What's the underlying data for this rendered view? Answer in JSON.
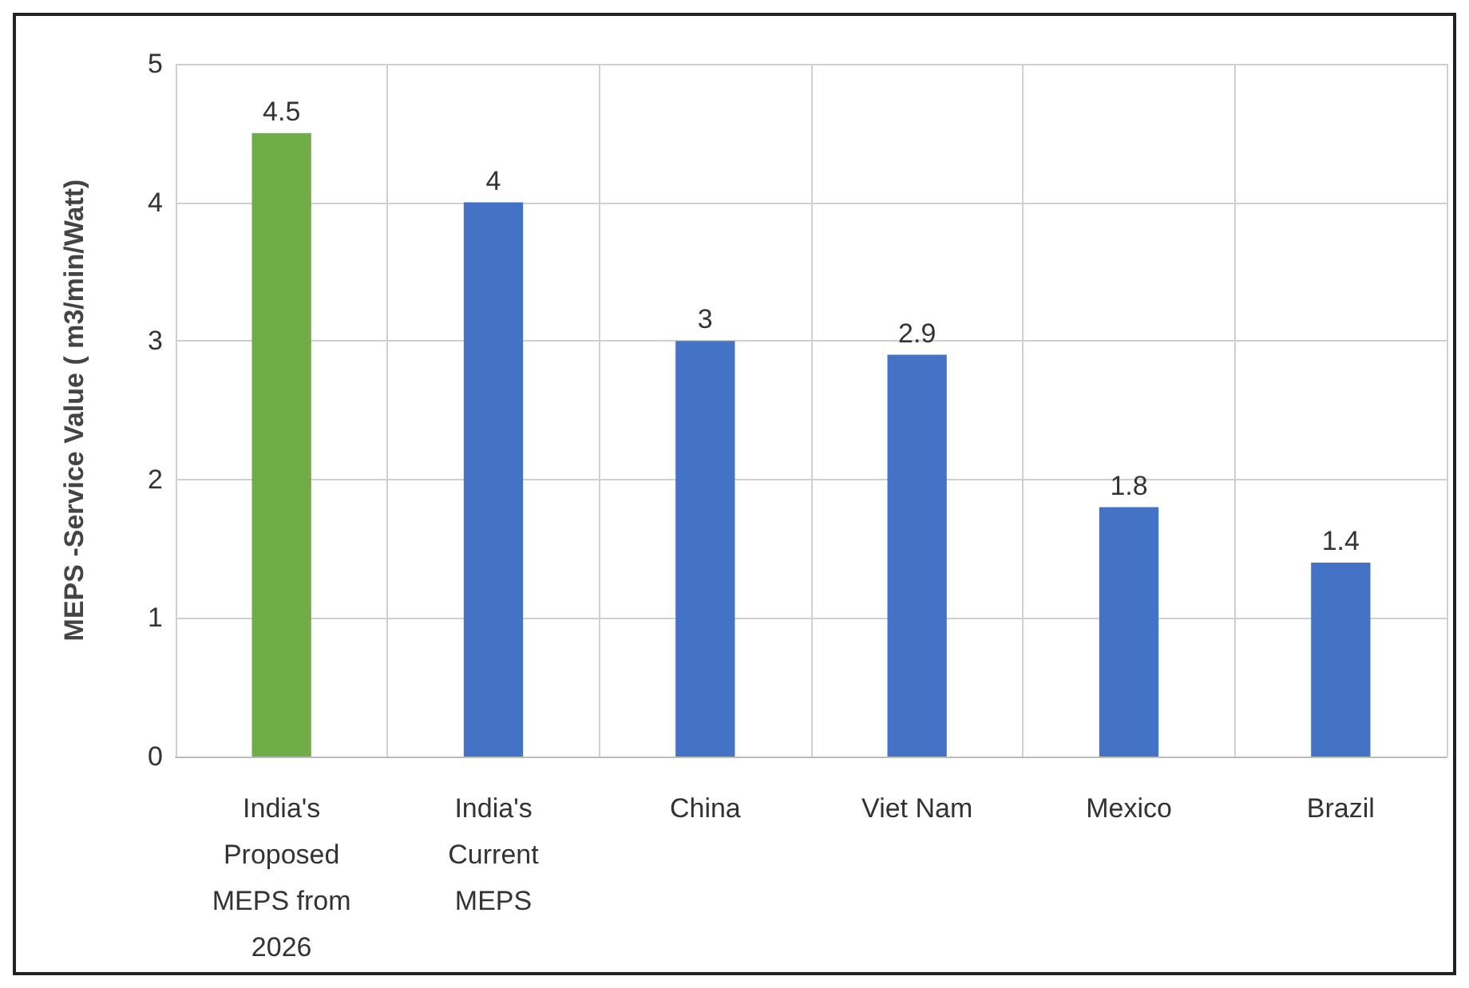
{
  "chart_data": {
    "type": "bar",
    "ylabel": "MEPS -Service Value ( m3/min/Watt)",
    "categories": [
      "India's\nProposed\nMEPS from\n2026",
      "India's\nCurrent\nMEPS",
      "China",
      "Viet Nam",
      "Mexico",
      "Brazil"
    ],
    "values": [
      4.5,
      4,
      3,
      2.9,
      1.8,
      1.4
    ],
    "colors": [
      "#70ad47",
      "#4472c4",
      "#4472c4",
      "#4472c4",
      "#4472c4",
      "#4472c4"
    ],
    "ylim": [
      0,
      5
    ],
    "yticks": [
      0,
      1,
      2,
      3,
      4,
      5
    ],
    "grid": true,
    "data_labels": true
  }
}
